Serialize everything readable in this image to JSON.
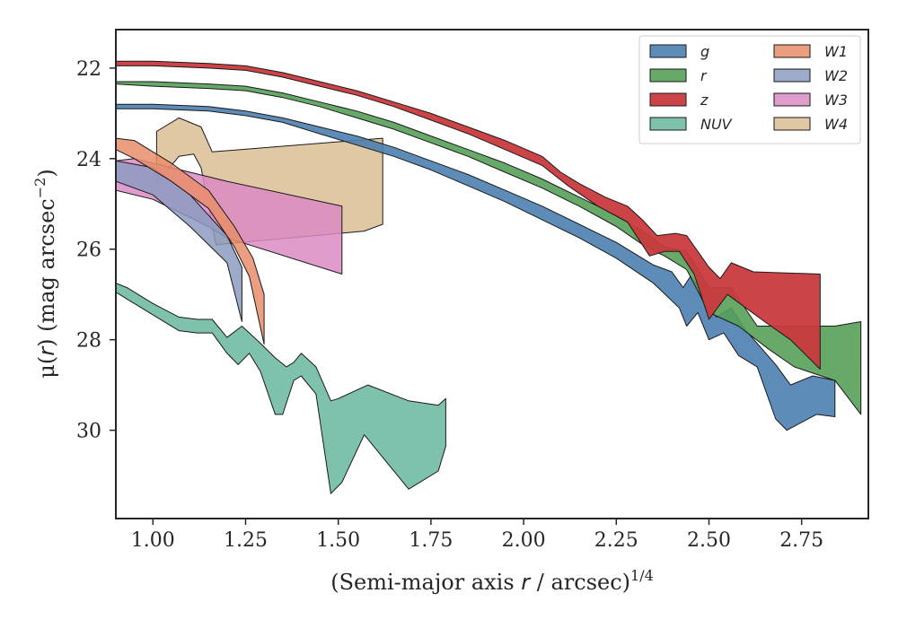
{
  "chart_data": {
    "type": "area",
    "xlabel": "(Semi-major axis r / arcsec)^1/4",
    "xlabel_parts": {
      "main": "(Semi-major axis ",
      "var": "r",
      "rest": " / arcsec)",
      "sup": "1/4"
    },
    "ylabel": "μ(r) (mag arcsec^-2)",
    "ylabel_parts": {
      "mu": "μ(",
      "var": "r",
      "rest": ") (mag arcsec",
      "sup": "−2",
      "close": ")"
    },
    "xlim": [
      0.9,
      2.93
    ],
    "ylim": [
      31.95,
      21.15
    ],
    "y_inverted": true,
    "x_ticks": [
      1.0,
      1.25,
      1.5,
      1.75,
      2.0,
      2.25,
      2.5,
      2.75
    ],
    "x_tick_labels": [
      "1.00",
      "1.25",
      "1.50",
      "1.75",
      "2.00",
      "2.25",
      "2.50",
      "2.75"
    ],
    "y_ticks": [
      22,
      24,
      26,
      28,
      30
    ],
    "y_tick_labels": [
      "22",
      "24",
      "26",
      "28",
      "30"
    ],
    "grid": false,
    "legend_position": "top-right",
    "legend_columns": 2,
    "series": [
      {
        "name": "W4",
        "color": "#ddc29a",
        "alpha": 0.9,
        "upper": [
          [
            1.01,
            23.4
          ],
          [
            1.07,
            23.1
          ],
          [
            1.13,
            23.3
          ],
          [
            1.16,
            23.85
          ],
          [
            1.62,
            23.55
          ]
        ],
        "lower": [
          [
            1.01,
            24.55
          ],
          [
            1.07,
            23.95
          ],
          [
            1.11,
            23.9
          ],
          [
            1.13,
            24.2
          ],
          [
            1.17,
            25.9
          ],
          [
            1.57,
            25.6
          ],
          [
            1.62,
            25.45
          ]
        ]
      },
      {
        "name": "W3",
        "color": "#da8bc3",
        "alpha": 0.85,
        "upper": [
          [
            0.9,
            24.05
          ],
          [
            0.95,
            24.0
          ],
          [
            1.05,
            24.2
          ],
          [
            1.2,
            24.5
          ],
          [
            1.51,
            25.05
          ]
        ],
        "lower": [
          [
            0.9,
            24.7
          ],
          [
            1.0,
            24.9
          ],
          [
            1.15,
            25.5
          ],
          [
            1.2,
            25.75
          ],
          [
            1.51,
            26.55
          ]
        ]
      },
      {
        "name": "W2",
        "color": "#8c9bbf",
        "alpha": 0.85,
        "upper": [
          [
            0.9,
            24.05
          ],
          [
            1.0,
            24.2
          ],
          [
            1.1,
            24.8
          ],
          [
            1.2,
            25.7
          ],
          [
            1.24,
            26.4
          ]
        ],
        "lower": [
          [
            0.9,
            24.5
          ],
          [
            1.0,
            24.8
          ],
          [
            1.1,
            25.5
          ],
          [
            1.2,
            26.3
          ],
          [
            1.24,
            27.6
          ]
        ]
      },
      {
        "name": "W1",
        "color": "#e98d6b",
        "alpha": 0.85,
        "upper": [
          [
            0.9,
            23.55
          ],
          [
            0.95,
            23.6
          ],
          [
            1.05,
            24.1
          ],
          [
            1.15,
            24.7
          ],
          [
            1.22,
            25.5
          ],
          [
            1.27,
            26.2
          ],
          [
            1.3,
            27.0
          ]
        ],
        "lower": [
          [
            0.9,
            23.8
          ],
          [
            0.95,
            24.0
          ],
          [
            1.05,
            24.5
          ],
          [
            1.15,
            25.1
          ],
          [
            1.22,
            25.95
          ],
          [
            1.26,
            26.6
          ],
          [
            1.3,
            28.1
          ]
        ]
      },
      {
        "name": "NUV",
        "color": "#6cb8a1",
        "alpha": 0.88,
        "upper": [
          [
            0.9,
            26.75
          ],
          [
            0.93,
            26.85
          ],
          [
            1.0,
            27.2
          ],
          [
            1.07,
            27.5
          ],
          [
            1.12,
            27.55
          ],
          [
            1.16,
            27.55
          ],
          [
            1.2,
            27.95
          ],
          [
            1.24,
            27.7
          ],
          [
            1.28,
            28.0
          ],
          [
            1.33,
            28.4
          ],
          [
            1.36,
            28.6
          ],
          [
            1.38,
            28.5
          ],
          [
            1.4,
            28.3
          ],
          [
            1.44,
            28.6
          ],
          [
            1.48,
            29.35
          ],
          [
            1.5,
            29.3
          ],
          [
            1.58,
            29.0
          ],
          [
            1.69,
            29.35
          ],
          [
            1.77,
            29.45
          ],
          [
            1.79,
            29.3
          ]
        ],
        "lower": [
          [
            0.9,
            26.95
          ],
          [
            0.93,
            27.1
          ],
          [
            1.0,
            27.45
          ],
          [
            1.07,
            27.8
          ],
          [
            1.12,
            27.85
          ],
          [
            1.16,
            27.85
          ],
          [
            1.2,
            28.3
          ],
          [
            1.23,
            28.55
          ],
          [
            1.26,
            28.3
          ],
          [
            1.29,
            28.7
          ],
          [
            1.33,
            29.65
          ],
          [
            1.35,
            29.65
          ],
          [
            1.38,
            28.9
          ],
          [
            1.4,
            28.8
          ],
          [
            1.44,
            29.2
          ],
          [
            1.48,
            31.4
          ],
          [
            1.51,
            31.15
          ],
          [
            1.57,
            30.1
          ],
          [
            1.69,
            31.3
          ],
          [
            1.77,
            30.9
          ],
          [
            1.79,
            30.35
          ]
        ]
      },
      {
        "name": "g",
        "color": "#4c7fb0",
        "alpha": 0.9,
        "upper": [
          [
            0.9,
            22.8
          ],
          [
            1.0,
            22.8
          ],
          [
            1.15,
            22.85
          ],
          [
            1.25,
            22.95
          ],
          [
            1.35,
            23.1
          ],
          [
            1.45,
            23.3
          ],
          [
            1.55,
            23.5
          ],
          [
            1.65,
            23.75
          ],
          [
            1.75,
            24.05
          ],
          [
            1.85,
            24.35
          ],
          [
            1.95,
            24.7
          ],
          [
            2.05,
            25.05
          ],
          [
            2.15,
            25.45
          ],
          [
            2.25,
            25.85
          ],
          [
            2.35,
            26.35
          ],
          [
            2.4,
            26.5
          ],
          [
            2.43,
            26.85
          ],
          [
            2.45,
            26.6
          ],
          [
            2.48,
            26.9
          ],
          [
            2.52,
            27.5
          ],
          [
            2.56,
            27.3
          ],
          [
            2.6,
            27.8
          ],
          [
            2.68,
            28.55
          ],
          [
            2.72,
            29.0
          ],
          [
            2.78,
            28.8
          ],
          [
            2.84,
            28.9
          ]
        ],
        "lower": [
          [
            0.9,
            22.9
          ],
          [
            1.0,
            22.9
          ],
          [
            1.15,
            22.95
          ],
          [
            1.25,
            23.05
          ],
          [
            1.35,
            23.2
          ],
          [
            1.45,
            23.45
          ],
          [
            1.55,
            23.7
          ],
          [
            1.65,
            23.95
          ],
          [
            1.75,
            24.25
          ],
          [
            1.85,
            24.6
          ],
          [
            1.95,
            24.95
          ],
          [
            2.05,
            25.35
          ],
          [
            2.15,
            25.75
          ],
          [
            2.25,
            26.2
          ],
          [
            2.35,
            26.75
          ],
          [
            2.42,
            27.3
          ],
          [
            2.44,
            27.7
          ],
          [
            2.47,
            27.4
          ],
          [
            2.5,
            28.0
          ],
          [
            2.54,
            27.85
          ],
          [
            2.58,
            28.35
          ],
          [
            2.63,
            28.6
          ],
          [
            2.68,
            29.75
          ],
          [
            2.71,
            30.0
          ],
          [
            2.79,
            29.65
          ],
          [
            2.84,
            29.7
          ]
        ]
      },
      {
        "name": "r",
        "color": "#55a059",
        "alpha": 0.9,
        "upper": [
          [
            0.9,
            22.3
          ],
          [
            1.0,
            22.3
          ],
          [
            1.15,
            22.35
          ],
          [
            1.25,
            22.4
          ],
          [
            1.35,
            22.55
          ],
          [
            1.45,
            22.75
          ],
          [
            1.55,
            22.95
          ],
          [
            1.65,
            23.2
          ],
          [
            1.75,
            23.5
          ],
          [
            1.85,
            23.8
          ],
          [
            1.95,
            24.1
          ],
          [
            2.05,
            24.45
          ],
          [
            2.15,
            24.85
          ],
          [
            2.25,
            25.25
          ],
          [
            2.33,
            25.65
          ],
          [
            2.38,
            25.95
          ],
          [
            2.44,
            26.05
          ],
          [
            2.5,
            26.85
          ],
          [
            2.56,
            26.85
          ],
          [
            2.63,
            27.7
          ],
          [
            2.73,
            27.7
          ],
          [
            2.84,
            27.7
          ],
          [
            2.91,
            27.6
          ]
        ],
        "lower": [
          [
            0.9,
            22.35
          ],
          [
            1.0,
            22.4
          ],
          [
            1.15,
            22.45
          ],
          [
            1.25,
            22.5
          ],
          [
            1.35,
            22.65
          ],
          [
            1.45,
            22.85
          ],
          [
            1.55,
            23.1
          ],
          [
            1.65,
            23.35
          ],
          [
            1.75,
            23.65
          ],
          [
            1.85,
            23.95
          ],
          [
            1.95,
            24.3
          ],
          [
            2.05,
            24.65
          ],
          [
            2.15,
            25.05
          ],
          [
            2.25,
            25.5
          ],
          [
            2.33,
            25.95
          ],
          [
            2.38,
            26.15
          ],
          [
            2.44,
            26.45
          ],
          [
            2.5,
            27.4
          ],
          [
            2.58,
            27.7
          ],
          [
            2.66,
            28.2
          ],
          [
            2.73,
            28.6
          ],
          [
            2.84,
            28.9
          ],
          [
            2.91,
            29.65
          ]
        ]
      },
      {
        "name": "z",
        "color": "#c93a3e",
        "alpha": 0.95,
        "upper": [
          [
            0.9,
            21.85
          ],
          [
            1.0,
            21.85
          ],
          [
            1.15,
            21.9
          ],
          [
            1.25,
            21.95
          ],
          [
            1.35,
            22.1
          ],
          [
            1.45,
            22.3
          ],
          [
            1.55,
            22.5
          ],
          [
            1.65,
            22.75
          ],
          [
            1.75,
            23.0
          ],
          [
            1.85,
            23.3
          ],
          [
            1.95,
            23.6
          ],
          [
            2.05,
            23.95
          ],
          [
            2.1,
            24.3
          ],
          [
            2.15,
            24.55
          ],
          [
            2.22,
            24.85
          ],
          [
            2.28,
            25.05
          ],
          [
            2.32,
            25.35
          ],
          [
            2.36,
            25.7
          ],
          [
            2.41,
            25.65
          ],
          [
            2.44,
            25.7
          ],
          [
            2.5,
            26.4
          ],
          [
            2.53,
            26.65
          ],
          [
            2.56,
            26.3
          ],
          [
            2.62,
            26.5
          ],
          [
            2.8,
            26.55
          ]
        ],
        "lower": [
          [
            0.9,
            21.95
          ],
          [
            1.0,
            21.95
          ],
          [
            1.15,
            22.0
          ],
          [
            1.25,
            22.05
          ],
          [
            1.35,
            22.2
          ],
          [
            1.45,
            22.4
          ],
          [
            1.55,
            22.6
          ],
          [
            1.65,
            22.85
          ],
          [
            1.75,
            23.15
          ],
          [
            1.85,
            23.45
          ],
          [
            1.95,
            23.8
          ],
          [
            2.05,
            24.15
          ],
          [
            2.12,
            24.6
          ],
          [
            2.2,
            25.05
          ],
          [
            2.28,
            25.4
          ],
          [
            2.34,
            26.15
          ],
          [
            2.38,
            26.05
          ],
          [
            2.42,
            26.05
          ],
          [
            2.46,
            26.55
          ],
          [
            2.5,
            27.55
          ],
          [
            2.55,
            27.0
          ],
          [
            2.65,
            27.6
          ],
          [
            2.72,
            28.0
          ],
          [
            2.8,
            28.65
          ]
        ]
      }
    ],
    "legend_order": [
      "g",
      "r",
      "z",
      "NUV",
      "W1",
      "W2",
      "W3",
      "W4"
    ]
  }
}
